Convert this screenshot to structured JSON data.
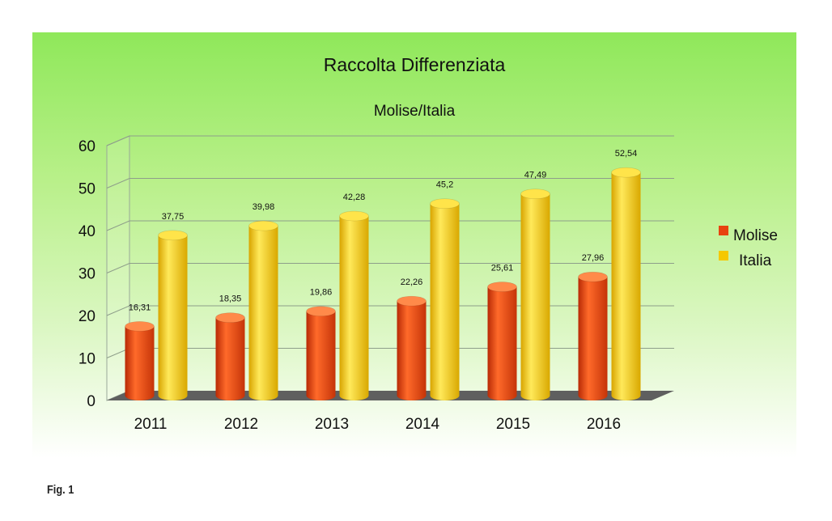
{
  "figure_label": "Fig. 1",
  "chart_data": {
    "type": "bar",
    "title": "Raccolta Differenziata",
    "subtitle": "Molise/Italia",
    "categories": [
      "2011",
      "2012",
      "2013",
      "2014",
      "2015",
      "2016"
    ],
    "series": [
      {
        "name": "Molise",
        "color": "#e8420f",
        "values": [
          16.31,
          18.35,
          19.86,
          22.26,
          25.61,
          27.96
        ],
        "labels": [
          "16,31",
          "18,35",
          "19,86",
          "22,26",
          "25,61",
          "27,96"
        ]
      },
      {
        "name": "Italia",
        "color": "#f5c800",
        "values": [
          37.75,
          39.98,
          42.28,
          45.2,
          47.49,
          52.54
        ],
        "labels": [
          "37,75",
          "39,98",
          "42,28",
          "45,2",
          "47,49",
          "52,54"
        ]
      }
    ],
    "ylim": [
      0,
      60
    ],
    "yticks": [
      "0",
      "10",
      "20",
      "30",
      "40",
      "50",
      "60"
    ],
    "grid": true,
    "legend_position": "right",
    "style": "3d-cylinder"
  }
}
